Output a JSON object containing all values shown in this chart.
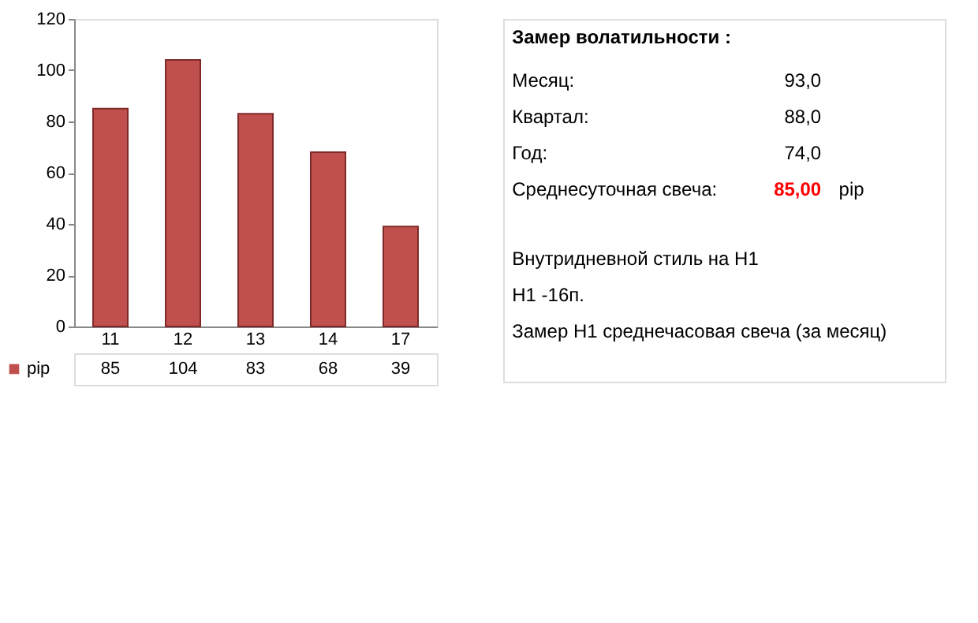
{
  "chart_data": [
    {
      "type": "bar",
      "categories": [
        "11",
        "12",
        "13",
        "14",
        "17"
      ],
      "series": [
        {
          "name": "pip",
          "color": "#c0504d",
          "values": [
            85,
            104,
            83,
            68,
            39
          ]
        }
      ],
      "ylim": [
        0,
        120
      ],
      "yticks": [
        0,
        20,
        40,
        60,
        80,
        100,
        120
      ],
      "grid": false,
      "data_labels": true,
      "legend": "bottom left"
    },
    {
      "type": "other",
      "annotations": [
        "Замер  волатильности  :",
        "Месяц:",
        "93,0",
        "Квартал:",
        "88,0",
        "Год:",
        "74,0",
        "Среднесуточная свеча:",
        "85,00",
        "pip",
        "Внутридневной стиль на H1",
        "H1 -16п.",
        "Замер H1 среднечасовая свеча (за месяц)"
      ]
    }
  ]
}
